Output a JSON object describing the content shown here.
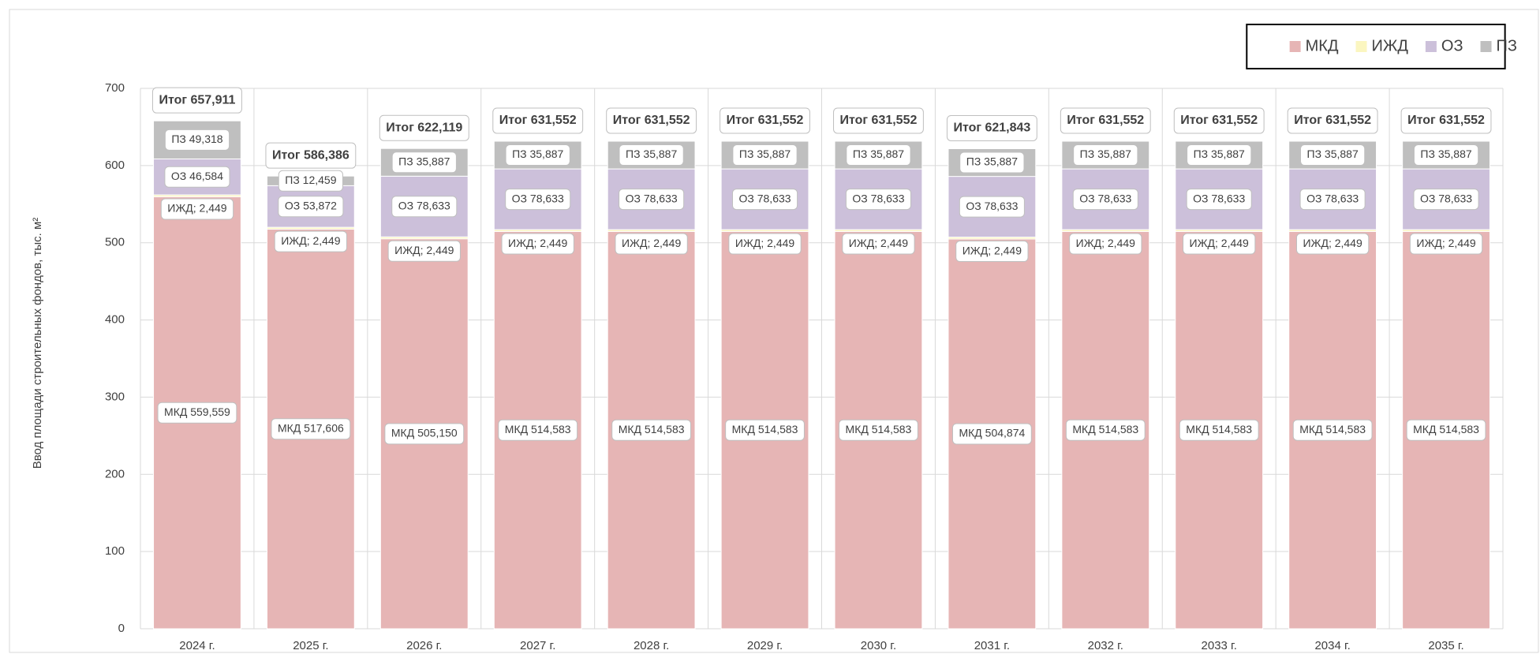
{
  "chart_data": {
    "type": "stacked_bar",
    "y_label": "Ввод площади строительных фондов, тыс. м²",
    "categories": [
      "2024 г.",
      "2025 г.",
      "2026 г.",
      "2027 г.",
      "2028 г.",
      "2029 г.",
      "2030 г.",
      "2031 г.",
      "2032 г.",
      "2033 г.",
      "2034 г.",
      "2035 г."
    ],
    "series": [
      {
        "name": "МКД",
        "color": "#e6b5b5",
        "values": [
          559.559,
          517.606,
          505.15,
          514.583,
          514.583,
          514.583,
          514.583,
          504.874,
          514.583,
          514.583,
          514.583,
          514.583
        ],
        "value_labels": [
          "МКД 559,559",
          "МКД 517,606",
          "МКД 505,150",
          "МКД 514,583",
          "МКД 514,583",
          "МКД 514,583",
          "МКД 514,583",
          "МКД 504,874",
          "МКД 514,583",
          "МКД 514,583",
          "МКД 514,583",
          "МКД 514,583"
        ]
      },
      {
        "name": "ИЖД",
        "color": "#fbf6c0",
        "values": [
          2.449,
          2.449,
          2.449,
          2.449,
          2.449,
          2.449,
          2.449,
          2.449,
          2.449,
          2.449,
          2.449,
          2.449
        ],
        "value_labels": [
          "ИЖД; 2,449",
          "ИЖД; 2,449",
          "ИЖД; 2,449",
          "ИЖД; 2,449",
          "ИЖД; 2,449",
          "ИЖД; 2,449",
          "ИЖД; 2,449",
          "ИЖД; 2,449",
          "ИЖД; 2,449",
          "ИЖД; 2,449",
          "ИЖД; 2,449",
          "ИЖД; 2,449"
        ]
      },
      {
        "name": "ОЗ",
        "color": "#ccc0da",
        "values": [
          46.584,
          53.872,
          78.633,
          78.633,
          78.633,
          78.633,
          78.633,
          78.633,
          78.633,
          78.633,
          78.633,
          78.633
        ],
        "value_labels": [
          "ОЗ 46,584",
          "ОЗ 53,872",
          "ОЗ 78,633",
          "ОЗ 78,633",
          "ОЗ 78,633",
          "ОЗ 78,633",
          "ОЗ 78,633",
          "ОЗ 78,633",
          "ОЗ 78,633",
          "ОЗ 78,633",
          "ОЗ 78,633",
          "ОЗ 78,633"
        ]
      },
      {
        "name": "ПЗ",
        "color": "#bfbfbf",
        "values": [
          49.318,
          12.459,
          35.887,
          35.887,
          35.887,
          35.887,
          35.887,
          35.887,
          35.887,
          35.887,
          35.887,
          35.887
        ],
        "value_labels": [
          "ПЗ 49,318",
          "ПЗ 12,459",
          "ПЗ 35,887",
          "ПЗ 35,887",
          "ПЗ 35,887",
          "ПЗ 35,887",
          "ПЗ 35,887",
          "ПЗ 35,887",
          "ПЗ 35,887",
          "ПЗ 35,887",
          "ПЗ 35,887",
          "ПЗ 35,887"
        ]
      }
    ],
    "totals": [
      657.911,
      586.386,
      622.119,
      631.552,
      631.552,
      631.552,
      631.552,
      621.843,
      631.552,
      631.552,
      631.552,
      631.552
    ],
    "total_labels": [
      "Итог  657,911",
      "Итог  586,386",
      "Итог  622,119",
      "Итог  631,552",
      "Итог  631,552",
      "Итог  631,552",
      "Итог  631,552",
      "Итог  621,843",
      "Итог  631,552",
      "Итог  631,552",
      "Итог  631,552",
      "Итог  631,552"
    ],
    "ylim": [
      0,
      700
    ],
    "yticks": [
      0,
      100,
      200,
      300,
      400,
      500,
      600,
      700
    ],
    "grid": true,
    "legend": "top-right"
  }
}
